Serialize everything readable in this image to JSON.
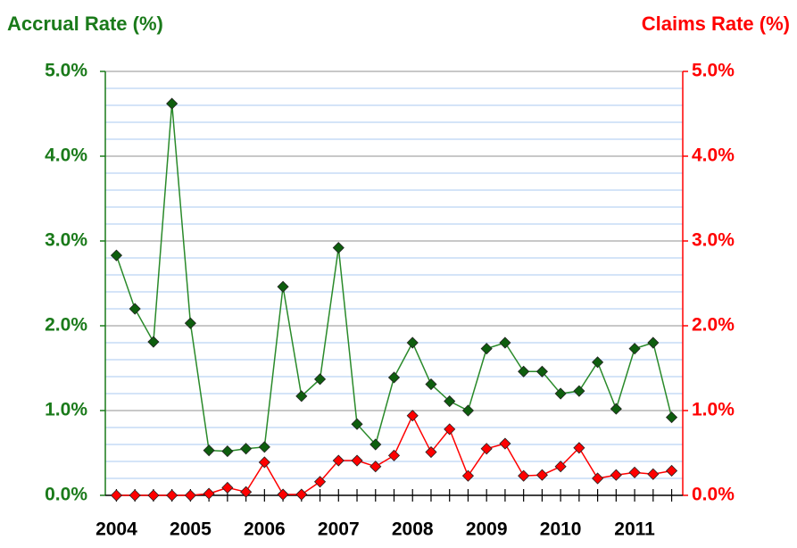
{
  "chart_data": {
    "type": "line",
    "title_left": "Accrual Rate (%)",
    "title_right": "Claims Rate (%)",
    "x": [
      2004,
      2004.25,
      2004.5,
      2004.75,
      2005,
      2005.25,
      2005.5,
      2005.75,
      2006,
      2006.25,
      2006.5,
      2006.75,
      2007,
      2007.25,
      2007.5,
      2007.75,
      2008,
      2008.25,
      2008.5,
      2008.75,
      2009,
      2009.25,
      2009.5,
      2009.75,
      2010,
      2010.25,
      2010.5,
      2010.75,
      2011,
      2011.25,
      2011.5
    ],
    "series": [
      {
        "name": "Accrual Rate (%)",
        "color": "#2a8a2a",
        "marker_color": "#0e5e0e",
        "axis": "y",
        "values": [
          2.83,
          2.2,
          1.81,
          4.62,
          2.03,
          0.53,
          0.52,
          0.55,
          0.57,
          2.46,
          1.17,
          1.37,
          2.92,
          0.84,
          0.6,
          1.39,
          1.8,
          1.31,
          1.11,
          1.0,
          1.73,
          1.8,
          1.46,
          1.46,
          1.2,
          1.23,
          1.57,
          1.02,
          1.73,
          1.8,
          0.92
        ]
      },
      {
        "name": "Claims Rate (%)",
        "color": "#ff0000",
        "marker_color": "#ff0000",
        "axis": "y2",
        "values": [
          0,
          0,
          0,
          0,
          0,
          0.02,
          0.09,
          0.04,
          0.39,
          0.01,
          0.01,
          0.16,
          0.41,
          0.41,
          0.34,
          0.47,
          0.94,
          0.51,
          0.78,
          0.23,
          0.55,
          0.61,
          0.23,
          0.24,
          0.34,
          0.56,
          0.2,
          0.24,
          0.27,
          0.25,
          0.29
        ]
      }
    ],
    "xlim": [
      2003.85,
      2011.65
    ],
    "xticks": [
      2004,
      2005,
      2006,
      2007,
      2008,
      2009,
      2010,
      2011
    ],
    "ylim": [
      0,
      5
    ],
    "yticks": [
      {
        "value": 0,
        "label": "0.0%"
      },
      {
        "value": 1,
        "label": "1.0%"
      },
      {
        "value": 2,
        "label": "2.0%"
      },
      {
        "value": 3,
        "label": "3.0%"
      },
      {
        "value": 4,
        "label": "4.0%"
      },
      {
        "value": 5,
        "label": "5.0%"
      }
    ],
    "y2lim": [
      0,
      5
    ],
    "y2ticks": [
      {
        "value": 0,
        "label": "0.0%"
      },
      {
        "value": 1,
        "label": "1.0%"
      },
      {
        "value": 2,
        "label": "2.0%"
      },
      {
        "value": 3,
        "label": "3.0%"
      },
      {
        "value": 4,
        "label": "4.0%"
      },
      {
        "value": 5,
        "label": "5.0%"
      }
    ],
    "yminorticks": [
      0.2,
      0.4,
      0.6,
      0.8,
      1.2,
      1.4,
      1.6,
      1.8,
      2.2,
      2.4,
      2.6,
      2.8,
      3.2,
      3.4,
      3.6,
      3.8,
      4.2,
      4.4,
      4.6,
      4.8
    ],
    "grid": true,
    "left_axis_color": "#1a7a1a",
    "right_axis_color": "#ff0000"
  }
}
